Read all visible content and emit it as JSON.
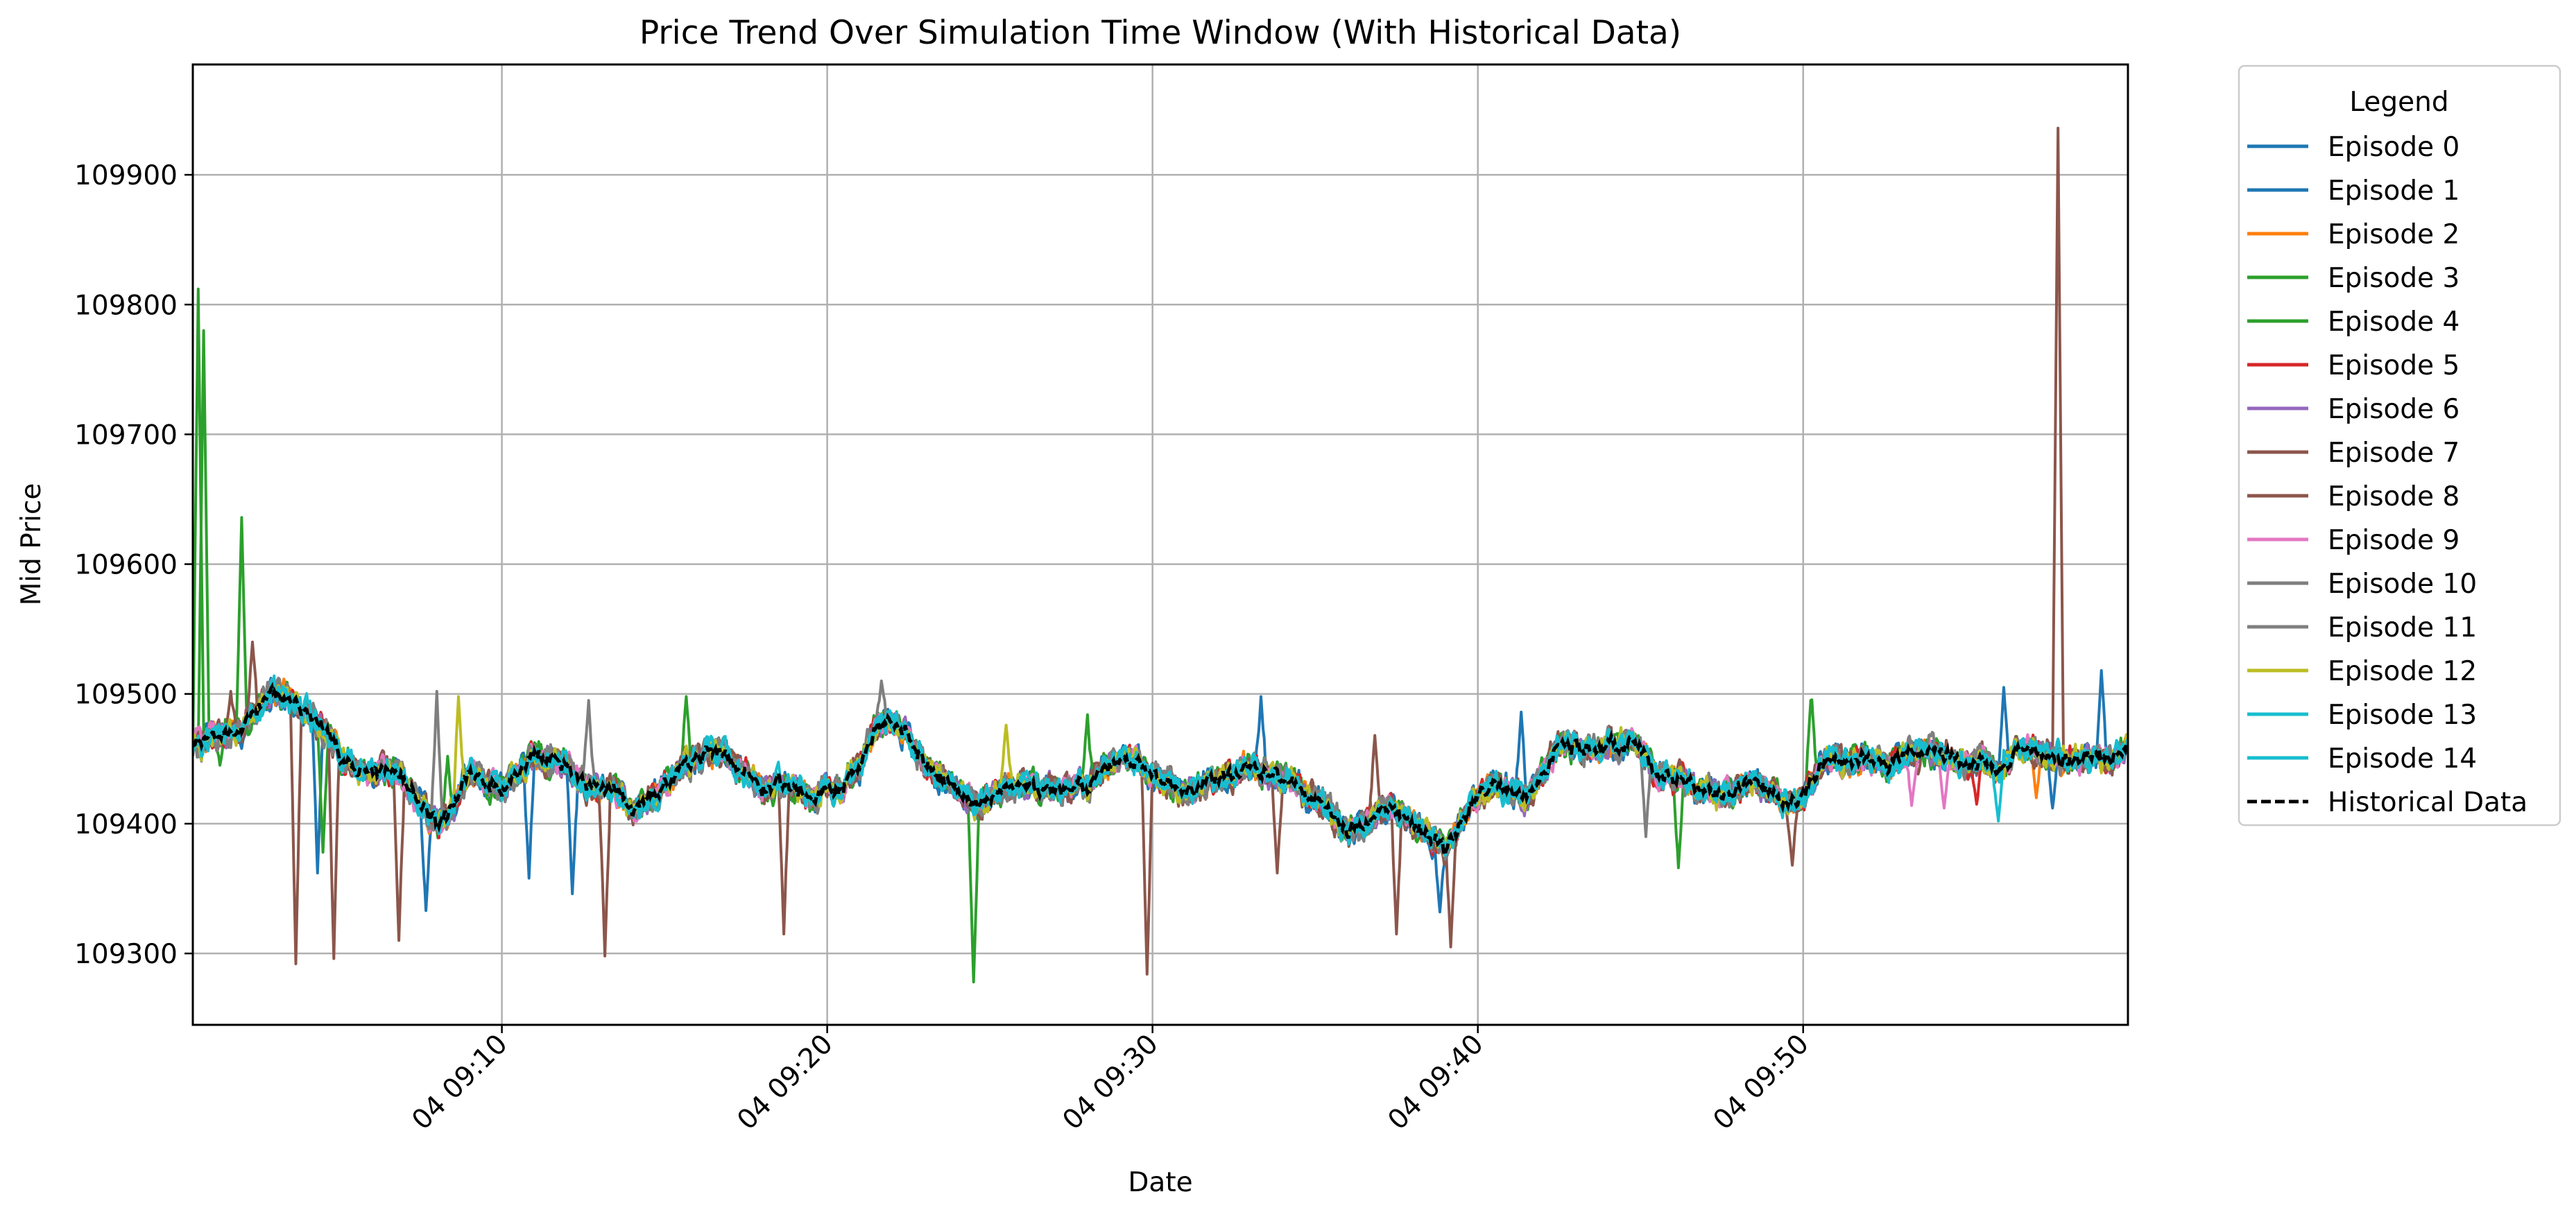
{
  "chart_data": {
    "type": "line",
    "title": "Price Trend Over Simulation Time Window (With Historical Data)",
    "xlabel": "Date",
    "ylabel": "Mid Price",
    "x_range": [
      "04 09:00:30",
      "04 09:59:59"
    ],
    "x_ticks": [
      "04 09:10",
      "04 09:20",
      "04 09:30",
      "04 09:40",
      "04 09:50"
    ],
    "ylim": [
      109245,
      109985
    ],
    "y_ticks": [
      "109300",
      "109400",
      "109500",
      "109600",
      "109700",
      "109800",
      "109900"
    ],
    "grid": true,
    "legend": {
      "title": "Legend",
      "placement": "outside-top-right"
    },
    "historical": {
      "name": "Historical Data",
      "color": "#000000",
      "style": "dashed",
      "points": [
        [
          "04 09:00:30",
          109460
        ],
        [
          "04 09:01:00",
          109465
        ],
        [
          "04 09:01:30",
          109470
        ],
        [
          "04 09:02:00",
          109472
        ],
        [
          "04 09:02:30",
          109490
        ],
        [
          "04 09:03:00",
          109500
        ],
        [
          "04 09:03:30",
          109495
        ],
        [
          "04 09:04:00",
          109485
        ],
        [
          "04 09:04:30",
          109472
        ],
        [
          "04 09:05:00",
          109455
        ],
        [
          "04 09:05:30",
          109443
        ],
        [
          "04 09:06:00",
          109440
        ],
        [
          "04 09:06:30",
          109442
        ],
        [
          "04 09:07:00",
          109435
        ],
        [
          "04 09:07:30",
          109415
        ],
        [
          "04 09:08:00",
          109400
        ],
        [
          "04 09:08:30",
          109410
        ],
        [
          "04 09:09:00",
          109440
        ],
        [
          "04 09:09:30",
          109432
        ],
        [
          "04 09:10:00",
          109428
        ],
        [
          "04 09:10:30",
          109440
        ],
        [
          "04 09:11:00",
          109452
        ],
        [
          "04 09:11:30",
          109450
        ],
        [
          "04 09:12:00",
          109445
        ],
        [
          "04 09:12:30",
          109432
        ],
        [
          "04 09:13:00",
          109425
        ],
        [
          "04 09:13:30",
          109428
        ],
        [
          "04 09:14:00",
          109410
        ],
        [
          "04 09:14:30",
          109420
        ],
        [
          "04 09:15:00",
          109432
        ],
        [
          "04 09:15:30",
          109440
        ],
        [
          "04 09:16:00",
          109450
        ],
        [
          "04 09:16:30",
          109455
        ],
        [
          "04 09:17:00",
          109452
        ],
        [
          "04 09:17:30",
          109440
        ],
        [
          "04 09:18:00",
          109425
        ],
        [
          "04 09:18:30",
          109432
        ],
        [
          "04 09:19:00",
          109428
        ],
        [
          "04 09:19:30",
          109420
        ],
        [
          "04 09:20:00",
          109425
        ],
        [
          "04 09:20:30",
          109430
        ],
        [
          "04 09:21:00",
          109445
        ],
        [
          "04 09:21:30",
          109475
        ],
        [
          "04 09:22:00",
          109482
        ],
        [
          "04 09:22:30",
          109470
        ],
        [
          "04 09:23:00",
          109445
        ],
        [
          "04 09:23:30",
          109435
        ],
        [
          "04 09:24:00",
          109425
        ],
        [
          "04 09:24:30",
          109418
        ],
        [
          "04 09:25:00",
          109420
        ],
        [
          "04 09:25:30",
          109428
        ],
        [
          "04 09:26:00",
          109432
        ],
        [
          "04 09:26:30",
          109425
        ],
        [
          "04 09:27:00",
          109420
        ],
        [
          "04 09:27:30",
          109428
        ],
        [
          "04 09:28:00",
          109430
        ],
        [
          "04 09:28:30",
          109445
        ],
        [
          "04 09:29:00",
          109450
        ],
        [
          "04 09:29:30",
          109448
        ],
        [
          "04 09:30:00",
          109438
        ],
        [
          "04 09:30:30",
          109432
        ],
        [
          "04 09:31:00",
          109428
        ],
        [
          "04 09:31:30",
          109430
        ],
        [
          "04 09:32:00",
          109435
        ],
        [
          "04 09:32:30",
          109438
        ],
        [
          "04 09:33:00",
          109442
        ],
        [
          "04 09:33:30",
          109440
        ],
        [
          "04 09:34:00",
          109435
        ],
        [
          "04 09:34:30",
          109428
        ],
        [
          "04 09:35:00",
          109420
        ],
        [
          "04 09:35:30",
          109410
        ],
        [
          "04 09:36:00",
          109395
        ],
        [
          "04 09:36:30",
          109400
        ],
        [
          "04 09:37:00",
          109415
        ],
        [
          "04 09:37:30",
          109410
        ],
        [
          "04 09:38:00",
          109400
        ],
        [
          "04 09:38:30",
          109395
        ],
        [
          "04 09:39:00",
          109380
        ],
        [
          "04 09:39:30",
          109400
        ],
        [
          "04 09:40:00",
          109420
        ],
        [
          "04 09:40:30",
          109428
        ],
        [
          "04 09:41:00",
          109425
        ],
        [
          "04 09:41:30",
          109420
        ],
        [
          "04 09:42:00",
          109440
        ],
        [
          "04 09:42:30",
          109462
        ],
        [
          "04 09:43:00",
          109460
        ],
        [
          "04 09:43:30",
          109458
        ],
        [
          "04 09:44:00",
          109460
        ],
        [
          "04 09:44:30",
          109462
        ],
        [
          "04 09:45:00",
          109455
        ],
        [
          "04 09:45:30",
          109440
        ],
        [
          "04 09:46:00",
          109435
        ],
        [
          "04 09:46:30",
          109432
        ],
        [
          "04 09:47:00",
          109428
        ],
        [
          "04 09:47:30",
          109420
        ],
        [
          "04 09:48:00",
          109428
        ],
        [
          "04 09:48:30",
          109435
        ],
        [
          "04 09:49:00",
          109425
        ],
        [
          "04 09:49:30",
          109415
        ],
        [
          "04 09:50:00",
          109420
        ],
        [
          "04 09:50:30",
          109445
        ],
        [
          "04 09:51:00",
          109452
        ],
        [
          "04 09:51:30",
          109448
        ],
        [
          "04 09:52:00",
          109450
        ],
        [
          "04 09:52:30",
          109445
        ],
        [
          "04 09:53:00",
          109450
        ],
        [
          "04 09:53:30",
          109455
        ],
        [
          "04 09:54:00",
          109460
        ],
        [
          "04 09:54:30",
          109450
        ],
        [
          "04 09:55:00",
          109445
        ],
        [
          "04 09:55:30",
          109450
        ],
        [
          "04 09:56:00",
          109440
        ],
        [
          "04 09:56:30",
          109452
        ],
        [
          "04 09:57:00",
          109460
        ],
        [
          "04 09:57:30",
          109455
        ],
        [
          "04 09:58:00",
          109448
        ],
        [
          "04 09:58:30",
          109450
        ],
        [
          "04 09:59:00",
          109455
        ],
        [
          "04 09:59:30",
          109452
        ],
        [
          "04 09:59:59",
          109455
        ]
      ]
    },
    "series": [
      {
        "name": "Episode 0",
        "color": "#1f77b4",
        "noise": 8,
        "spikes": [
          [
            "04 09:07:40",
            109333
          ]
        ]
      },
      {
        "name": "Episode 1",
        "color": "#1f77b4",
        "noise": 9,
        "spikes": [
          [
            "04 09:04:20",
            109362
          ],
          [
            "04 09:10:50",
            109358
          ],
          [
            "04 09:12:10",
            109346
          ],
          [
            "04 09:33:20",
            109498
          ],
          [
            "04 09:38:50",
            109332
          ],
          [
            "04 09:41:20",
            109486
          ],
          [
            "04 09:56:10",
            109505
          ],
          [
            "04 09:57:40",
            109412
          ],
          [
            "04 09:59:10",
            109518
          ]
        ]
      },
      {
        "name": "Episode 2",
        "color": "#ff7f0e",
        "noise": 8,
        "spikes": [
          [
            "04 09:57:10",
            109420
          ]
        ]
      },
      {
        "name": "Episode 3",
        "color": "#2ca02c",
        "noise": 9,
        "spikes": [
          [
            "04 09:00:40",
            109812
          ],
          [
            "04 09:01:20",
            109445
          ],
          [
            "04 09:02:00",
            109636
          ],
          [
            "04 09:08:20",
            109452
          ],
          [
            "04 09:15:40",
            109498
          ],
          [
            "04 09:24:30",
            109278
          ],
          [
            "04 09:28:00",
            109484
          ]
        ]
      },
      {
        "name": "Episode 4",
        "color": "#2ca02c",
        "noise": 8,
        "spikes": [
          [
            "04 09:00:50",
            109780
          ],
          [
            "04 09:04:30",
            109378
          ],
          [
            "04 09:46:10",
            109366
          ],
          [
            "04 09:50:15",
            109502
          ]
        ]
      },
      {
        "name": "Episode 5",
        "color": "#d62728",
        "noise": 8,
        "spikes": [
          [
            "04 09:55:20",
            109415
          ]
        ]
      },
      {
        "name": "Episode 6",
        "color": "#9467bd",
        "noise": 8,
        "spikes": []
      },
      {
        "name": "Episode 7",
        "color": "#8c564b",
        "noise": 9,
        "spikes": [
          [
            "04 09:03:40",
            109292
          ],
          [
            "04 09:04:50",
            109296
          ],
          [
            "04 09:06:50",
            109310
          ],
          [
            "04 09:13:10",
            109298
          ],
          [
            "04 09:18:40",
            109315
          ],
          [
            "04 09:29:50",
            109284
          ],
          [
            "04 09:37:30",
            109315
          ],
          [
            "04 09:39:10",
            109305
          ],
          [
            "04 09:57:50",
            109936
          ]
        ]
      },
      {
        "name": "Episode 8",
        "color": "#8c564b",
        "noise": 8,
        "spikes": [
          [
            "04 09:01:40",
            109502
          ],
          [
            "04 09:02:20",
            109540
          ],
          [
            "04 09:33:50",
            109362
          ],
          [
            "04 09:36:50",
            109468
          ],
          [
            "04 09:49:40",
            109368
          ]
        ]
      },
      {
        "name": "Episode 9",
        "color": "#e377c2",
        "noise": 8,
        "spikes": [
          [
            "04 09:53:20",
            109414
          ],
          [
            "04 09:54:20",
            109412
          ]
        ]
      },
      {
        "name": "Episode 10",
        "color": "#7f7f7f",
        "noise": 9,
        "spikes": [
          [
            "04 09:08:00",
            109502
          ],
          [
            "04 09:21:40",
            109510
          ],
          [
            "04 09:45:10",
            109390
          ]
        ]
      },
      {
        "name": "Episode 11",
        "color": "#7f7f7f",
        "noise": 8,
        "spikes": [
          [
            "04 09:12:40",
            109495
          ]
        ]
      },
      {
        "name": "Episode 12",
        "color": "#bcbd22",
        "noise": 8,
        "spikes": [
          [
            "04 09:08:40",
            109498
          ],
          [
            "04 09:25:30",
            109476
          ]
        ]
      },
      {
        "name": "Episode 13",
        "color": "#17becf",
        "noise": 8,
        "spikes": [
          [
            "04 09:56:00",
            109402
          ]
        ]
      },
      {
        "name": "Episode 14",
        "color": "#17becf",
        "noise": 7,
        "spikes": []
      }
    ]
  }
}
